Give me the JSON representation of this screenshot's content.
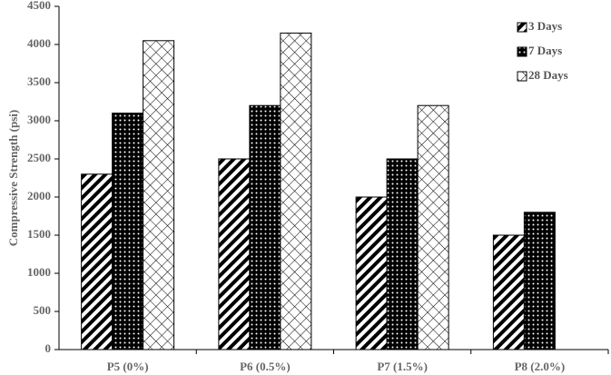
{
  "chart_data": {
    "type": "bar",
    "ylabel": "Compressive Strength (psi)",
    "categories": [
      "P5 (0%)",
      "P6 (0.5%)",
      "P7 (1.5%)",
      "P8 (2.0%)"
    ],
    "series": [
      {
        "name": "3 Days",
        "values": [
          2300,
          2500,
          2000,
          1500
        ]
      },
      {
        "name": "7 Days",
        "values": [
          3100,
          3200,
          2500,
          1800
        ]
      },
      {
        "name": "28 Days",
        "values": [
          4050,
          4150,
          3200,
          null
        ]
      }
    ],
    "ylim": [
      0,
      4500
    ],
    "yticks": [
      0,
      500,
      1000,
      1500,
      2000,
      2500,
      3000,
      3500,
      4000,
      4500
    ],
    "legend": "upper right"
  }
}
